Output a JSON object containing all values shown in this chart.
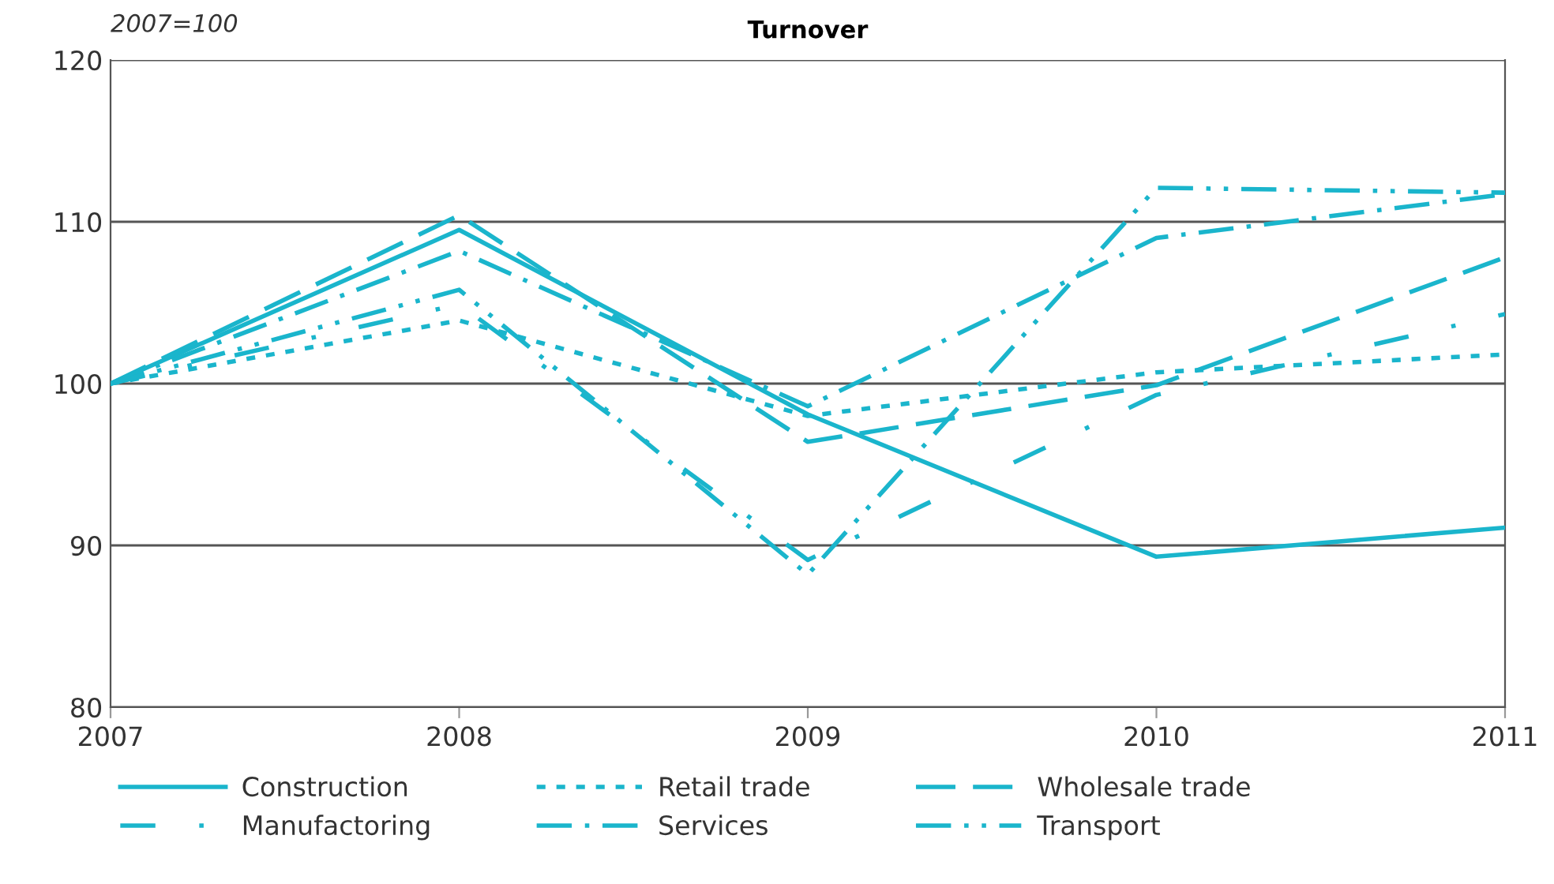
{
  "chart_data": {
    "type": "line",
    "title": "Turnover",
    "annotations": [
      "2007=100"
    ],
    "x": [
      2007,
      2008,
      2009,
      2010,
      2011
    ],
    "xlim": [
      2007,
      2011
    ],
    "xticks": [
      2007,
      2008,
      2009,
      2010,
      2011
    ],
    "ylim": [
      80,
      120
    ],
    "yticks": [
      80,
      90,
      100,
      110,
      120
    ],
    "grid": "y",
    "legend": "bottom",
    "marker": "none",
    "series": [
      {
        "name": "Construction",
        "color": "#1ab5cc",
        "line_style": "solid",
        "values": [
          100,
          109.5,
          98.1,
          89.3,
          91.1
        ]
      },
      {
        "name": "Retail trade",
        "color": "#1ab5cc",
        "line_style": "dotted",
        "values": [
          100,
          103.9,
          98.0,
          100.7,
          101.8
        ]
      },
      {
        "name": "Wholesale trade",
        "color": "#1ab5cc",
        "line_style": "dashed",
        "values": [
          100,
          110.4,
          96.4,
          99.9,
          107.8
        ]
      },
      {
        "name": "Manufactoring",
        "color": "#1ab5cc",
        "line_style": "sparse dash",
        "values": [
          100,
          104.9,
          89.1,
          99.3,
          104.3
        ]
      },
      {
        "name": "Services",
        "color": "#1ab5cc",
        "line_style": "dashdot",
        "values": [
          100,
          108.2,
          98.6,
          109.0,
          111.7
        ]
      },
      {
        "name": "Transport",
        "color": "#1ab5cc",
        "line_style": "dashdotdot",
        "values": [
          100,
          105.8,
          88.2,
          112.1,
          111.8
        ]
      }
    ]
  }
}
